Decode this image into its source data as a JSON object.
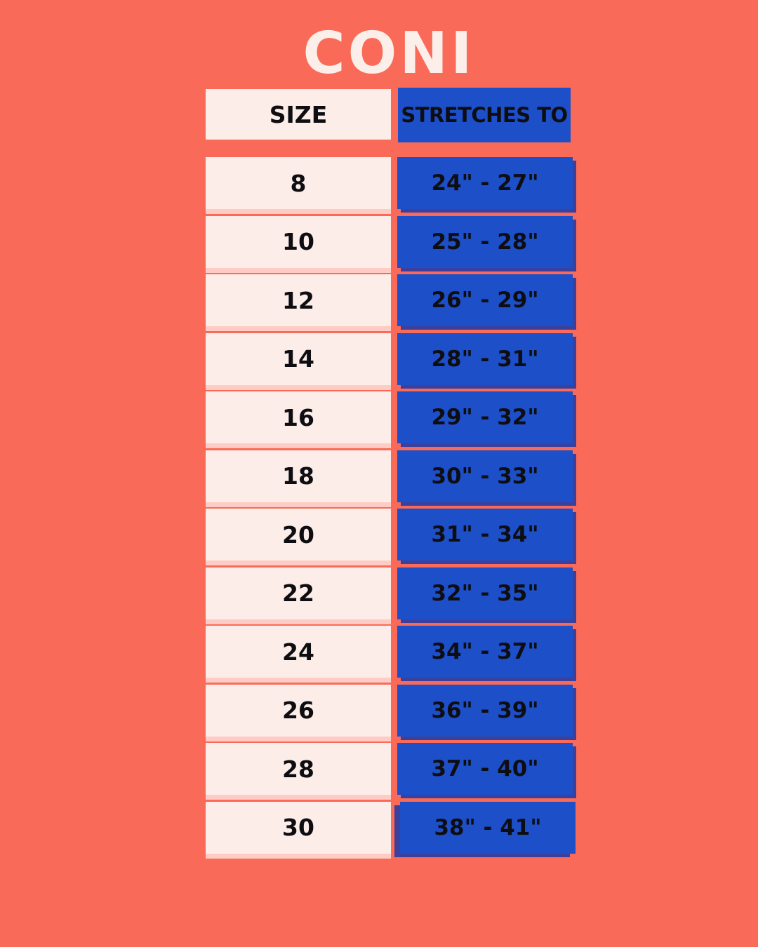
{
  "title": {
    "text": "CONI"
  },
  "table": {
    "headers": [
      {
        "label": "SIZE"
      },
      {
        "label": "STRETCHES TO"
      }
    ],
    "rows": [
      {
        "size": "8",
        "stretches_to": "24\" - 27\""
      },
      {
        "size": "10",
        "stretches_to": "25\" - 28\""
      },
      {
        "size": "12",
        "stretches_to": "26\" - 29\""
      },
      {
        "size": "14",
        "stretches_to": "28\" - 31\""
      },
      {
        "size": "16",
        "stretches_to": "29\" - 32\""
      },
      {
        "size": "18",
        "stretches_to": "30\" - 33\""
      },
      {
        "size": "20",
        "stretches_to": "31\" - 34\""
      },
      {
        "size": "22",
        "stretches_to": "32\" - 35\""
      },
      {
        "size": "24",
        "stretches_to": "34\" - 37\""
      },
      {
        "size": "26",
        "stretches_to": "36\" - 39\""
      },
      {
        "size": "28",
        "stretches_to": "37\" - 40\""
      },
      {
        "size": "30",
        "stretches_to": "38\" - 41\""
      }
    ]
  },
  "chart_data": {
    "type": "table",
    "title": "CONI",
    "columns": [
      "SIZE",
      "STRETCHES TO"
    ],
    "rows": [
      [
        "8",
        "24\" - 27\""
      ],
      [
        "10",
        "25\" - 28\""
      ],
      [
        "12",
        "26\" - 29\""
      ],
      [
        "14",
        "28\" - 31\""
      ],
      [
        "16",
        "29\" - 32\""
      ],
      [
        "18",
        "30\" - 33\""
      ],
      [
        "20",
        "31\" - 34\""
      ],
      [
        "22",
        "32\" - 35\""
      ],
      [
        "24",
        "34\" - 37\""
      ],
      [
        "26",
        "36\" - 39\""
      ],
      [
        "28",
        "37\" - 40\""
      ],
      [
        "30",
        "38\" - 41\""
      ]
    ]
  },
  "colors": {
    "background_coral": "#FA6A58",
    "cell_cream": "#FCEDE8",
    "cell_blue": "#1D4FC8",
    "blue_shadow": "#2F3EA0",
    "text_black": "#0E0E12",
    "title_cream": "#FCEEE9"
  }
}
